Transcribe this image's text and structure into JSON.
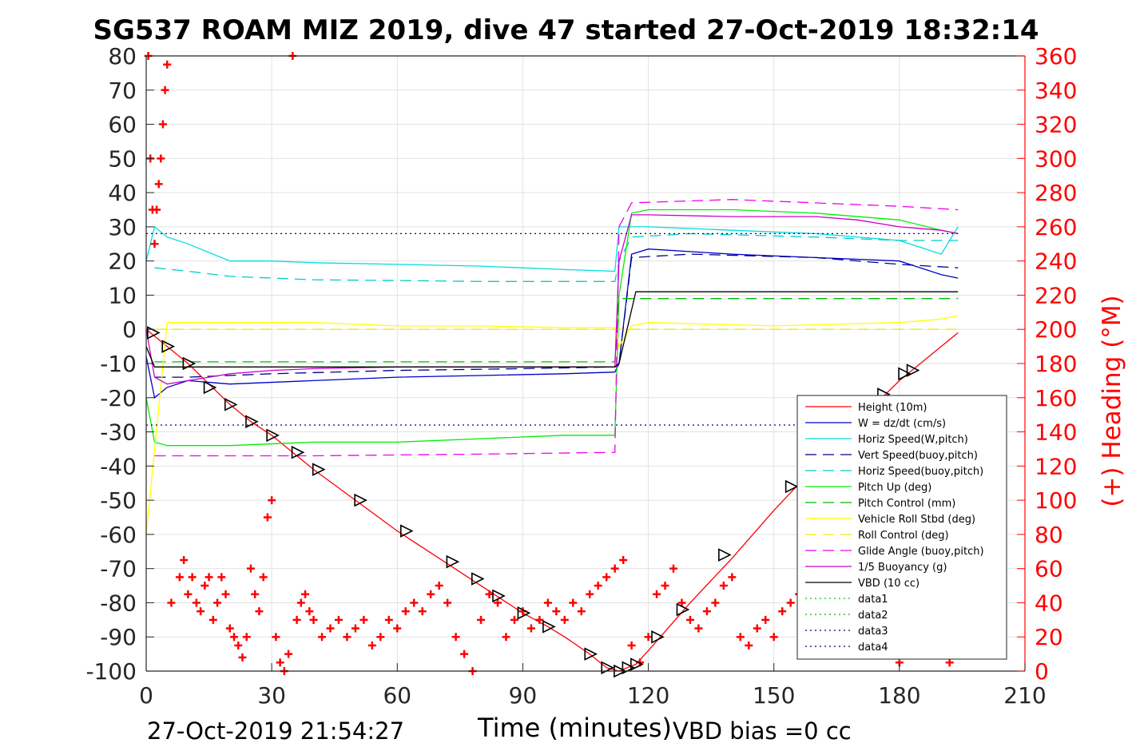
{
  "chart_data": {
    "type": "line",
    "title": "SG537 ROAM MIZ 2019, dive 47 started 27-Oct-2019 18:32:14",
    "xlabel": "Time (minutes)",
    "ylabel_left": "",
    "ylabel_right": "(+) Heading (°M)",
    "xlim": [
      0,
      210
    ],
    "xticks": [
      0,
      30,
      60,
      90,
      120,
      150,
      180,
      210
    ],
    "ylim": [
      -100,
      80
    ],
    "yticks": [
      -100,
      -90,
      -80,
      -70,
      -60,
      -50,
      -40,
      -30,
      -20,
      -10,
      0,
      10,
      20,
      30,
      40,
      50,
      60,
      70,
      80
    ],
    "y2lim": [
      0,
      360
    ],
    "y2ticks": [
      0,
      20,
      40,
      60,
      80,
      100,
      120,
      140,
      160,
      180,
      200,
      220,
      240,
      260,
      280,
      300,
      320,
      340,
      360
    ],
    "grid": true,
    "legend_position": "lower-right",
    "footer_left": "27-Oct-2019 21:54:27",
    "footer_right": "VBD bias =0 cc",
    "series": [
      {
        "name": "Height (10m)",
        "color": "#ff0000",
        "style": "solid",
        "x": [
          0,
          1,
          2,
          5,
          10,
          15,
          20,
          25,
          30,
          35,
          40,
          50,
          60,
          70,
          80,
          90,
          96,
          100,
          106,
          110,
          113,
          115,
          117,
          120,
          125,
          130,
          140,
          150,
          160,
          170,
          180,
          186,
          190,
          194
        ],
        "y": [
          0,
          -1,
          -2,
          -5,
          -10,
          -16,
          -22,
          -27,
          -31,
          -36,
          -41,
          -50,
          -59,
          -67,
          -75,
          -83,
          -87,
          -90,
          -95,
          -99,
          -100,
          -99,
          -98,
          -94,
          -87,
          -80,
          -67,
          -53,
          -40,
          -27,
          -15,
          -9,
          -5,
          -1
        ]
      },
      {
        "name": "W = dz/dt (cm/s)",
        "color": "#0000cc",
        "style": "solid",
        "x": [
          0,
          2,
          5,
          10,
          20,
          40,
          60,
          80,
          100,
          112,
          113,
          116,
          120,
          140,
          160,
          180,
          190,
          194
        ],
        "y": [
          -8,
          -20,
          -17,
          -15,
          -16,
          -15,
          -14,
          -13.5,
          -13,
          -12.5,
          -10,
          22,
          23.5,
          22,
          21,
          20,
          16,
          15
        ]
      },
      {
        "name": "Horiz Speed(W,pitch)",
        "color": "#00dddd",
        "style": "solid",
        "x": [
          0,
          2,
          5,
          10,
          20,
          30,
          40,
          60,
          80,
          100,
          112,
          113,
          116,
          120,
          140,
          160,
          180,
          190,
          194
        ],
        "y": [
          20,
          30,
          27,
          25,
          20,
          20,
          19.5,
          19,
          18.5,
          17.5,
          17,
          30,
          30,
          30,
          29,
          28,
          26,
          22,
          30
        ]
      },
      {
        "name": "Vert Speed(buoy,pitch)",
        "color": "#00008b",
        "style": "dashed",
        "x": [
          2,
          10,
          30,
          60,
          90,
          112,
          113,
          116,
          130,
          160,
          180,
          194
        ],
        "y": [
          -14,
          -14,
          -13,
          -12,
          -11.5,
          -11,
          -10,
          21,
          22,
          21,
          19,
          18
        ]
      },
      {
        "name": "Horiz Speed(buoy,pitch)",
        "color": "#00cccc",
        "style": "dashed",
        "x": [
          2,
          10,
          20,
          40,
          60,
          80,
          100,
          112,
          113,
          116,
          130,
          160,
          180,
          194
        ],
        "y": [
          18,
          17,
          15.5,
          14.5,
          14.3,
          14,
          14,
          14,
          20,
          27,
          28,
          27,
          26,
          26
        ]
      },
      {
        "name": "Pitch Up (deg)",
        "color": "#00ee00",
        "style": "solid",
        "x": [
          0,
          2,
          5,
          10,
          20,
          40,
          60,
          80,
          100,
          112,
          113,
          116,
          120,
          140,
          160,
          180,
          190,
          194
        ],
        "y": [
          -20,
          -33,
          -34,
          -34,
          -34,
          -33,
          -33,
          -32,
          -31,
          -31,
          10,
          34,
          35,
          35,
          34,
          32,
          29,
          28
        ]
      },
      {
        "name": "Pitch Control (mm)",
        "color": "#00bb00",
        "style": "dashed",
        "x": [
          2,
          112,
          113,
          116,
          194
        ],
        "y": [
          -9.5,
          -9.5,
          9,
          9,
          9
        ]
      },
      {
        "name": "Vehicle Roll Stbd (deg)",
        "color": "#ffff00",
        "style": "solid",
        "x": [
          0,
          5,
          10,
          40,
          60,
          80,
          100,
          112,
          113,
          116,
          120,
          150,
          180,
          190,
          194
        ],
        "y": [
          -60,
          2,
          2,
          2,
          1,
          1,
          0.5,
          0.5,
          -5,
          1,
          2,
          1,
          2,
          3,
          4
        ]
      },
      {
        "name": "Roll Control (deg)",
        "color": "#eeee00",
        "style": "dashed",
        "x": [
          2,
          194
        ],
        "y": [
          0,
          0
        ]
      },
      {
        "name": "Glide Angle (buoy,pitch)",
        "color": "#ee00ee",
        "style": "dashed",
        "x": [
          2,
          10,
          40,
          80,
          112,
          113,
          116,
          140,
          180,
          194
        ],
        "y": [
          -37,
          -37,
          -37,
          -36.5,
          -36,
          30,
          37,
          38,
          36,
          35
        ]
      },
      {
        "name": "1/5 Buoyancy (g)",
        "color": "#cc00cc",
        "style": "solid",
        "x": [
          0,
          2,
          5,
          10,
          20,
          30,
          40,
          60,
          80,
          100,
          112,
          113,
          116,
          120,
          140,
          160,
          170,
          180,
          190,
          194
        ],
        "y": [
          0,
          -14,
          -16,
          -15,
          -13,
          -12,
          -11.5,
          -11,
          -11,
          -11,
          -11,
          20,
          33.5,
          33.5,
          33,
          33,
          32,
          30,
          29,
          28
        ]
      },
      {
        "name": "VBD (10 cc)",
        "color": "#000000",
        "style": "solid",
        "x": [
          0,
          2,
          5,
          112,
          113,
          117,
          194
        ],
        "y": [
          -5,
          -11,
          -11,
          -11,
          -10,
          11,
          11
        ]
      },
      {
        "name": "data1",
        "color": "#00cc00",
        "style": "dotted",
        "x": [],
        "y": []
      },
      {
        "name": "data2",
        "color": "#00bb00",
        "style": "dotted",
        "x": [],
        "y": []
      },
      {
        "name": "data3",
        "color": "#000088",
        "style": "dotted",
        "x": [
          0,
          194
        ],
        "y": [
          28,
          28
        ]
      },
      {
        "name": "data4",
        "color": "#000088",
        "style": "dotted",
        "x": [
          0,
          194
        ],
        "y": [
          -28,
          -28
        ]
      }
    ],
    "heading_series": {
      "axis": "right",
      "color": "#ff0000",
      "marker": "+",
      "x": [
        0.5,
        1,
        1.5,
        2,
        2.5,
        3,
        3.5,
        4,
        4.5,
        5,
        6,
        8,
        9,
        10,
        11,
        12,
        13,
        14,
        15,
        16,
        17,
        18,
        19,
        20,
        21,
        22,
        23,
        24,
        25,
        26,
        27,
        28,
        29,
        30,
        31,
        32,
        33,
        34,
        35,
        36,
        37,
        38,
        39,
        40,
        42,
        44,
        46,
        48,
        50,
        52,
        54,
        56,
        58,
        60,
        62,
        64,
        66,
        68,
        70,
        72,
        74,
        76,
        78,
        80,
        82,
        84,
        86,
        88,
        90,
        92,
        94,
        96,
        98,
        100,
        102,
        104,
        106,
        108,
        110,
        112,
        114,
        116,
        118,
        120,
        122,
        124,
        126,
        128,
        130,
        132,
        134,
        136,
        138,
        140,
        142,
        144,
        146,
        148,
        150,
        152,
        154,
        156,
        158,
        160,
        162,
        164,
        166,
        168,
        170,
        172,
        174,
        176,
        178,
        180,
        182,
        184,
        186,
        188,
        190,
        192
      ],
      "y": [
        360,
        300,
        270,
        250,
        270,
        285,
        300,
        320,
        340,
        355,
        40,
        55,
        65,
        45,
        55,
        40,
        35,
        50,
        55,
        30,
        40,
        55,
        45,
        25,
        20,
        15,
        8,
        20,
        60,
        45,
        35,
        55,
        90,
        100,
        20,
        5,
        0,
        10,
        360,
        30,
        40,
        45,
        35,
        30,
        20,
        25,
        30,
        20,
        25,
        30,
        15,
        20,
        30,
        25,
        35,
        40,
        35,
        45,
        50,
        40,
        20,
        10,
        0,
        30,
        45,
        40,
        20,
        30,
        35,
        25,
        30,
        40,
        35,
        30,
        40,
        35,
        45,
        50,
        55,
        60,
        65,
        15,
        5,
        20,
        45,
        50,
        60,
        40,
        30,
        25,
        35,
        40,
        50,
        55,
        20,
        15,
        25,
        30,
        20,
        35,
        40,
        45,
        20,
        10,
        15,
        25,
        20,
        30,
        35,
        40,
        30,
        25,
        15,
        5,
        10,
        20,
        25,
        15,
        10,
        5
      ]
    },
    "triangle_markers": {
      "marker": "triangle",
      "x": [
        1.5,
        5,
        10,
        15,
        20,
        25,
        30,
        36,
        41,
        51,
        62,
        73,
        79,
        84,
        90,
        96,
        106,
        110,
        113,
        115,
        117,
        122,
        128,
        138,
        154,
        176,
        181,
        183
      ],
      "y": [
        -1,
        -5,
        -10,
        -17,
        -22,
        -27,
        -31,
        -36,
        -41,
        -50,
        -59,
        -68,
        -73,
        -78,
        -83,
        -87,
        -95,
        -99,
        -100,
        -99,
        -98,
        -90,
        -82,
        -66,
        -46,
        -19,
        -13,
        -12
      ]
    }
  }
}
